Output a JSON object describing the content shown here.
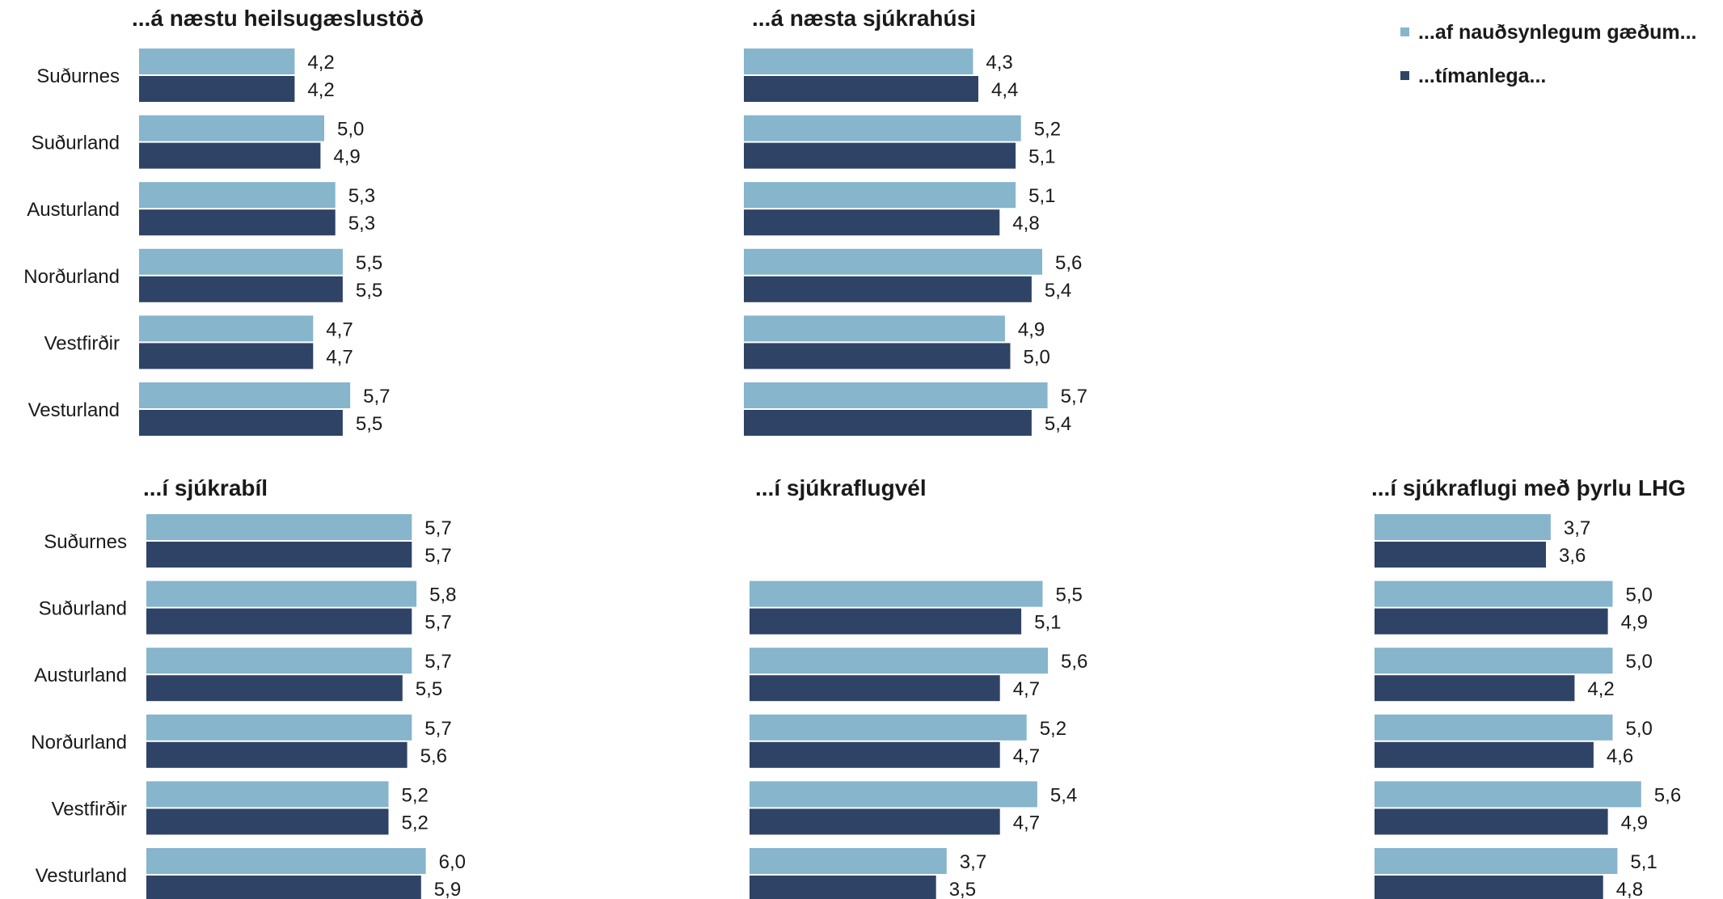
{
  "colors": {
    "series1": "#86b5cc",
    "series2": "#2f4366",
    "text": "#1a1a1a"
  },
  "legend": {
    "series1_label": "...af nauðsynlegum gæðum...",
    "series2_label": "...tímanlega..."
  },
  "chart_data": [
    {
      "type": "bar",
      "orientation": "horizontal",
      "title": "...á næstu heilsugæslustöð",
      "categories": [
        "Suðurnes",
        "Suðurland",
        "Austurland",
        "Norðurland",
        "Vestfirðir",
        "Vesturland"
      ],
      "series": [
        {
          "name": "...af nauðsynlegum gæðum...",
          "values": [
            4.2,
            5.0,
            5.3,
            5.5,
            4.7,
            5.7
          ],
          "labels": [
            "4,2",
            "5,0",
            "5,3",
            "5,5",
            "4,7",
            "5,7"
          ]
        },
        {
          "name": "...tímanlega...",
          "values": [
            4.2,
            4.9,
            5.3,
            5.5,
            4.7,
            5.5
          ],
          "labels": [
            "4,2",
            "4,9",
            "5,3",
            "5,5",
            "4,7",
            "5,5"
          ]
        }
      ]
    },
    {
      "type": "bar",
      "orientation": "horizontal",
      "title": "...á næsta sjúkrahúsi",
      "categories": [
        "Suðurnes",
        "Suðurland",
        "Austurland",
        "Norðurland",
        "Vestfirðir",
        "Vesturland"
      ],
      "series": [
        {
          "name": "...af nauðsynlegum gæðum...",
          "values": [
            4.3,
            5.2,
            5.1,
            5.6,
            4.9,
            5.7
          ],
          "labels": [
            "4,3",
            "5,2",
            "5,1",
            "5,6",
            "4,9",
            "5,7"
          ]
        },
        {
          "name": "...tímanlega...",
          "values": [
            4.4,
            5.1,
            4.8,
            5.4,
            5.0,
            5.4
          ],
          "labels": [
            "4,4",
            "5,1",
            "4,8",
            "5,4",
            "5,0",
            "5,4"
          ]
        }
      ]
    },
    {
      "type": "bar",
      "orientation": "horizontal",
      "title": "...í sjúkrabíl",
      "categories": [
        "Suðurnes",
        "Suðurland",
        "Austurland",
        "Norðurland",
        "Vestfirðir",
        "Vesturland"
      ],
      "series": [
        {
          "name": "...af nauðsynlegum gæðum...",
          "values": [
            5.7,
            5.8,
            5.7,
            5.7,
            5.2,
            6.0
          ],
          "labels": [
            "5,7",
            "5,8",
            "5,7",
            "5,7",
            "5,2",
            "6,0"
          ]
        },
        {
          "name": "...tímanlega...",
          "values": [
            5.7,
            5.7,
            5.5,
            5.6,
            5.2,
            5.9
          ],
          "labels": [
            "5,7",
            "5,7",
            "5,5",
            "5,6",
            "5,2",
            "5,9"
          ]
        }
      ]
    },
    {
      "type": "bar",
      "orientation": "horizontal",
      "title": "...í sjúkraflugvél",
      "categories": [
        "Suðurnes",
        "Suðurland",
        "Austurland",
        "Norðurland",
        "Vestfirðir",
        "Vesturland"
      ],
      "series": [
        {
          "name": "...af nauðsynlegum gæðum...",
          "values": [
            null,
            5.5,
            5.6,
            5.2,
            5.4,
            3.7
          ],
          "labels": [
            null,
            "5,5",
            "5,6",
            "5,2",
            "5,4",
            "3,7"
          ]
        },
        {
          "name": "...tímanlega...",
          "values": [
            null,
            5.1,
            4.7,
            4.7,
            4.7,
            3.5
          ],
          "labels": [
            null,
            "5,1",
            "4,7",
            "4,7",
            "4,7",
            "3,5"
          ]
        }
      ]
    },
    {
      "type": "bar",
      "orientation": "horizontal",
      "title": "...í sjúkraflugi með þyrlu LHG",
      "categories": [
        "Suðurnes",
        "Suðurland",
        "Austurland",
        "Norðurland",
        "Vestfirðir",
        "Vesturland"
      ],
      "series": [
        {
          "name": "...af nauðsynlegum gæðum...",
          "values": [
            3.7,
            5.0,
            5.0,
            5.0,
            5.6,
            5.1
          ],
          "labels": [
            "3,7",
            "5,0",
            "5,0",
            "5,0",
            "5,6",
            "5,1"
          ]
        },
        {
          "name": "...tímanlega...",
          "values": [
            3.6,
            4.9,
            4.2,
            4.6,
            4.9,
            4.8
          ],
          "labels": [
            "3,6",
            "4,9",
            "4,2",
            "4,6",
            "4,9",
            "4,8"
          ]
        }
      ]
    }
  ]
}
